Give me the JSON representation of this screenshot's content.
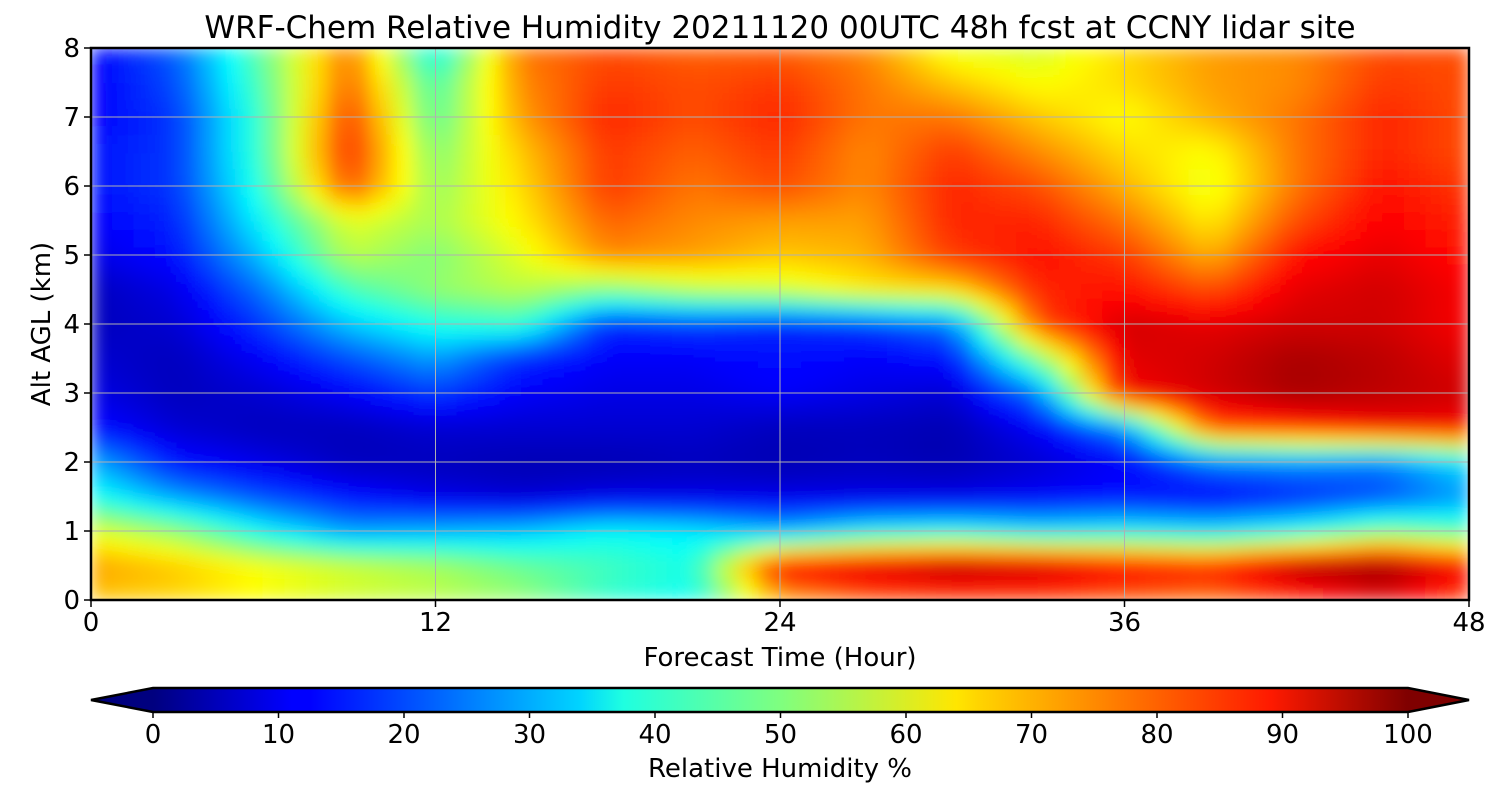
{
  "chart_data": {
    "type": "heatmap",
    "title": "WRF-Chem Relative Humidity 20211120 00UTC 48h fcst at CCNY lidar site",
    "xlabel": "Forecast Time (Hour)",
    "ylabel": "Alt AGL (km)",
    "xlim": [
      0,
      48
    ],
    "ylim": [
      0,
      8
    ],
    "x_ticks": [
      0,
      12,
      24,
      36,
      48
    ],
    "y_ticks": [
      0,
      1,
      2,
      3,
      4,
      5,
      6,
      7,
      8
    ],
    "grid": true,
    "colorbar": {
      "label": "Relative Humidity %",
      "colormap": "jet",
      "range": [
        0,
        100
      ],
      "ticks": [
        0,
        10,
        20,
        30,
        40,
        50,
        60,
        70,
        80,
        90,
        100
      ],
      "extend": "both"
    },
    "x": [
      0,
      3,
      6,
      9,
      12,
      15,
      18,
      21,
      24,
      27,
      30,
      33,
      36,
      39,
      42,
      45,
      48
    ],
    "y": [
      0,
      0.5,
      1,
      1.5,
      2,
      2.5,
      3,
      3.5,
      4,
      4.5,
      5,
      5.5,
      6,
      6.5,
      7,
      7.5,
      8
    ],
    "z": [
      [
        68,
        66,
        62,
        58,
        56,
        52,
        42,
        38,
        70,
        78,
        80,
        80,
        78,
        76,
        82,
        90,
        80
      ],
      [
        72,
        68,
        62,
        58,
        54,
        48,
        44,
        40,
        88,
        92,
        96,
        94,
        88,
        85,
        96,
        98,
        88
      ],
      [
        60,
        52,
        38,
        28,
        30,
        32,
        38,
        36,
        30,
        38,
        40,
        36,
        38,
        36,
        40,
        50,
        45
      ],
      [
        40,
        28,
        20,
        14,
        10,
        8,
        10,
        10,
        10,
        10,
        10,
        12,
        14,
        12,
        16,
        20,
        28
      ],
      [
        30,
        14,
        10,
        6,
        6,
        5,
        5,
        6,
        5,
        6,
        5,
        8,
        12,
        24,
        26,
        24,
        35
      ],
      [
        14,
        8,
        6,
        6,
        8,
        8,
        8,
        8,
        6,
        6,
        5,
        12,
        26,
        80,
        84,
        88,
        88
      ],
      [
        10,
        6,
        8,
        12,
        18,
        12,
        10,
        10,
        12,
        10,
        8,
        24,
        88,
        92,
        96,
        94,
        92
      ],
      [
        8,
        6,
        12,
        20,
        28,
        16,
        12,
        12,
        14,
        12,
        14,
        50,
        90,
        92,
        96,
        94,
        90
      ],
      [
        6,
        8,
        18,
        32,
        40,
        42,
        16,
        18,
        16,
        18,
        24,
        80,
        92,
        90,
        92,
        92,
        88
      ],
      [
        6,
        10,
        24,
        44,
        52,
        56,
        50,
        56,
        58,
        64,
        66,
        84,
        86,
        80,
        90,
        92,
        88
      ],
      [
        10,
        14,
        32,
        56,
        50,
        60,
        74,
        72,
        68,
        70,
        82,
        86,
        82,
        70,
        86,
        90,
        86
      ],
      [
        12,
        16,
        38,
        60,
        54,
        64,
        78,
        74,
        72,
        72,
        84,
        84,
        76,
        64,
        80,
        88,
        84
      ],
      [
        14,
        18,
        42,
        80,
        52,
        66,
        82,
        76,
        80,
        74,
        84,
        80,
        70,
        60,
        76,
        86,
        82
      ],
      [
        14,
        18,
        44,
        84,
        50,
        68,
        82,
        78,
        82,
        74,
        82,
        74,
        66,
        62,
        76,
        84,
        80
      ],
      [
        12,
        18,
        44,
        82,
        46,
        72,
        84,
        80,
        84,
        76,
        76,
        68,
        62,
        70,
        76,
        84,
        80
      ],
      [
        12,
        20,
        46,
        78,
        44,
        74,
        82,
        80,
        82,
        76,
        68,
        62,
        66,
        72,
        74,
        82,
        80
      ],
      [
        12,
        22,
        48,
        76,
        36,
        76,
        80,
        78,
        78,
        74,
        60,
        58,
        66,
        72,
        74,
        80,
        80
      ]
    ]
  }
}
